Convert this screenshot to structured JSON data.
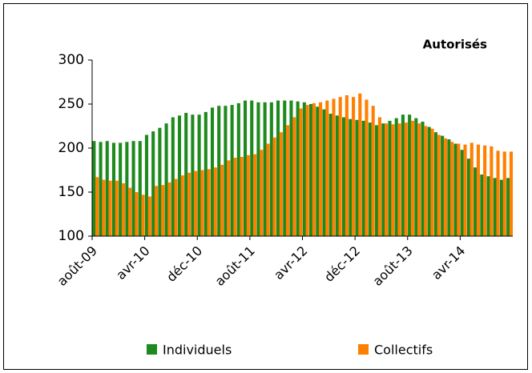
{
  "chart_data": {
    "type": "bar",
    "title": "Autorisés",
    "categories": [
      "août-09",
      null,
      null,
      null,
      null,
      null,
      null,
      null,
      "avr-10",
      null,
      null,
      null,
      null,
      null,
      null,
      null,
      "déc-10",
      null,
      null,
      null,
      null,
      null,
      null,
      null,
      "août-11",
      null,
      null,
      null,
      null,
      null,
      null,
      null,
      "avr-12",
      null,
      null,
      null,
      null,
      null,
      null,
      null,
      "déc-12",
      null,
      null,
      null,
      null,
      null,
      null,
      null,
      "août-13",
      null,
      null,
      null,
      null,
      null,
      null,
      null,
      "avr-14",
      null,
      null,
      null,
      null,
      null,
      null,
      null
    ],
    "series": [
      {
        "name": "Individuels",
        "color": "#1e8a1e",
        "values": [
          208,
          207,
          208,
          206,
          206,
          207,
          208,
          208,
          215,
          219,
          223,
          228,
          235,
          237,
          240,
          238,
          238,
          241,
          246,
          248,
          248,
          249,
          251,
          254,
          254,
          252,
          252,
          252,
          254,
          254,
          254,
          253,
          252,
          250,
          247,
          244,
          239,
          237,
          235,
          233,
          232,
          231,
          229,
          226,
          228,
          231,
          234,
          238,
          238,
          234,
          230,
          224,
          218,
          214,
          210,
          205,
          198,
          188,
          178,
          170,
          168,
          166,
          164,
          166
        ]
      },
      {
        "name": "Collectifs",
        "color": "#ff7f00",
        "values": [
          167,
          164,
          163,
          163,
          160,
          155,
          150,
          147,
          145,
          157,
          158,
          161,
          165,
          169,
          172,
          174,
          175,
          176,
          178,
          181,
          186,
          189,
          190,
          192,
          193,
          198,
          205,
          212,
          218,
          226,
          235,
          245,
          249,
          251,
          252,
          254,
          256,
          258,
          260,
          258,
          262,
          255,
          248,
          235,
          228,
          227,
          228,
          229,
          231,
          228,
          225,
          222,
          215,
          211,
          207,
          205,
          204,
          206,
          204,
          203,
          202,
          197,
          196,
          196
        ]
      }
    ],
    "ylim": [
      100,
      300
    ],
    "yticks": [
      100,
      150,
      200,
      250,
      300
    ]
  }
}
